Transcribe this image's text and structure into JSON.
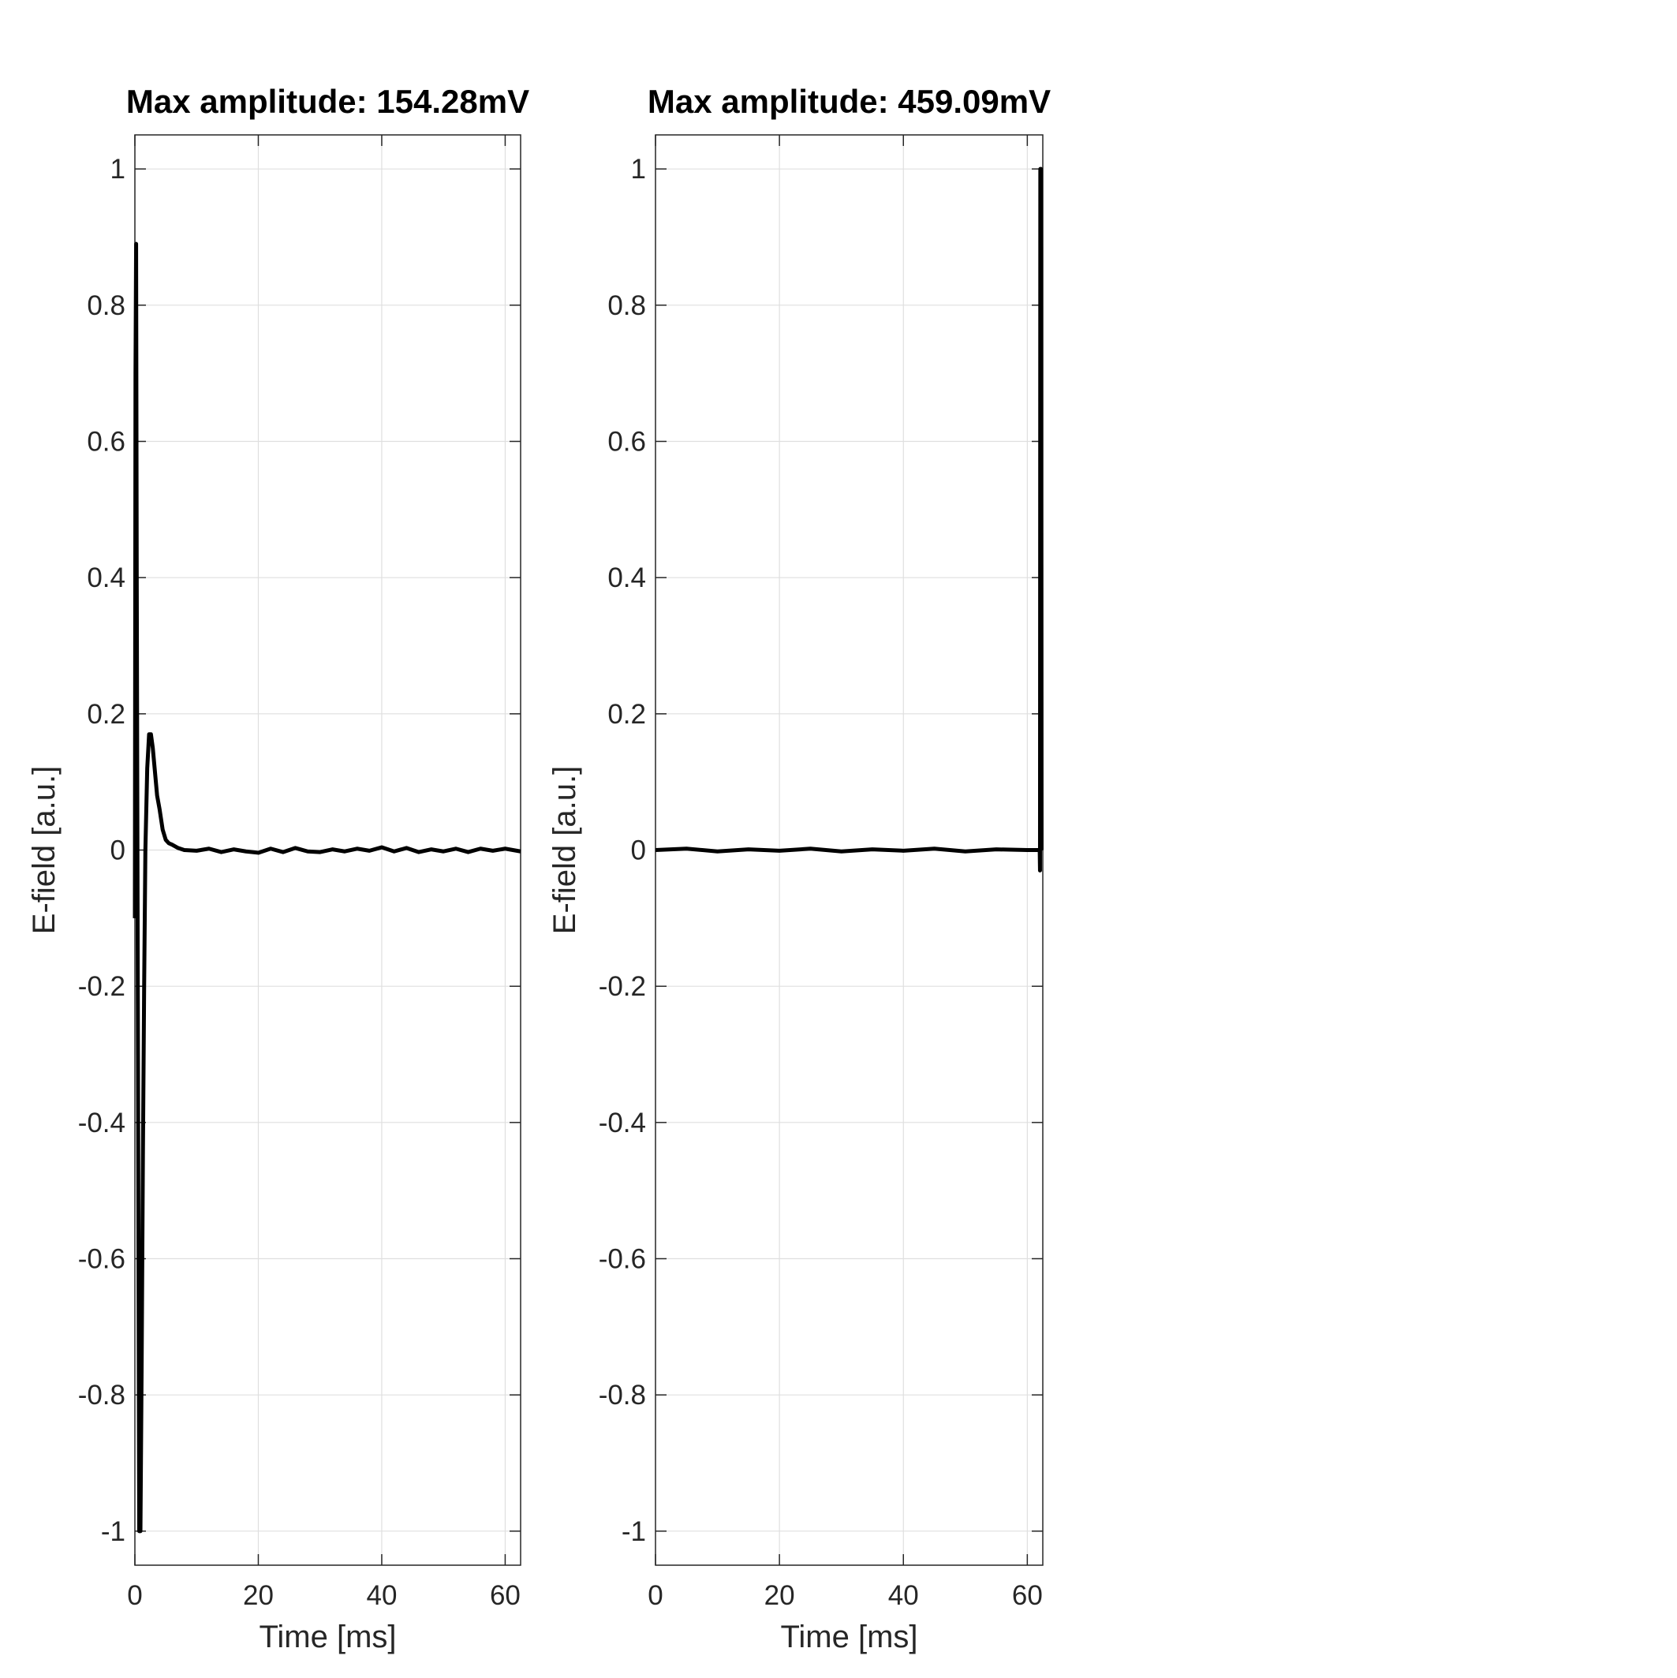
{
  "chart_data": [
    {
      "type": "line",
      "title": "Max amplitude: 154.28mV",
      "xlabel": "Time [ms]",
      "ylabel": "E-field [a.u.]",
      "xlim": [
        0,
        62.5
      ],
      "ylim": [
        -1.05,
        1.05
      ],
      "xticks": [
        0,
        20,
        40,
        60
      ],
      "xtick_labels": [
        "0",
        "20",
        "40",
        "60"
      ],
      "yticks": [
        -1,
        -0.8,
        -0.6,
        -0.4,
        -0.2,
        0,
        0.2,
        0.4,
        0.6,
        0.8,
        1
      ],
      "ytick_labels": [
        "-1",
        "-0.8",
        "-0.6",
        "-0.4",
        "-0.2",
        "0",
        "0.2",
        "0.4",
        "0.6",
        "0.8",
        "1"
      ],
      "grid": true,
      "line_color": "#000000",
      "series": [
        {
          "x": [
            0,
            0.05,
            0.1,
            0.2,
            0.3,
            0.5,
            0.7,
            0.9,
            1.1,
            1.3,
            1.5,
            1.7,
            2.0,
            2.3,
            2.6,
            2.9,
            3.2,
            3.6,
            4.0,
            4.5,
            5.0,
            5.5,
            6.0,
            7,
            8,
            10,
            12,
            14,
            16,
            18,
            20,
            22,
            24,
            26,
            28,
            30,
            32,
            34,
            36,
            38,
            40,
            42,
            44,
            46,
            48,
            50,
            52,
            54,
            56,
            58,
            60,
            62.5
          ],
          "y": [
            -0.1,
            0.3,
            0.7,
            0.89,
            0.4,
            -0.3,
            -1.0,
            -1.0,
            -0.75,
            -0.45,
            -0.2,
            0.0,
            0.12,
            0.17,
            0.17,
            0.15,
            0.12,
            0.08,
            0.06,
            0.03,
            0.015,
            0.01,
            0.008,
            0.003,
            0.0,
            -0.001,
            0.002,
            -0.003,
            0.001,
            -0.002,
            -0.004,
            0.002,
            -0.003,
            0.003,
            -0.002,
            -0.003,
            0.001,
            -0.002,
            0.002,
            -0.001,
            0.004,
            -0.002,
            0.003,
            -0.003,
            0.001,
            -0.002,
            0.002,
            -0.003,
            0.002,
            -0.001,
            0.002,
            -0.002
          ]
        }
      ]
    },
    {
      "type": "line",
      "title": "Max amplitude: 459.09mV",
      "xlabel": "Time [ms]",
      "ylabel": "E-field [a.u.]",
      "xlim": [
        0,
        62.5
      ],
      "ylim": [
        -1.05,
        1.05
      ],
      "xticks": [
        0,
        20,
        40,
        60
      ],
      "xtick_labels": [
        "0",
        "20",
        "40",
        "60"
      ],
      "yticks": [
        -1,
        -0.8,
        -0.6,
        -0.4,
        -0.2,
        0,
        0.2,
        0.4,
        0.6,
        0.8,
        1
      ],
      "ytick_labels": [
        "-1",
        "-0.8",
        "-0.6",
        "-0.4",
        "-0.2",
        "0",
        "0.2",
        "0.4",
        "0.6",
        "0.8",
        "1"
      ],
      "grid": true,
      "line_color": "#000000",
      "series": [
        {
          "x": [
            0,
            5,
            10,
            15,
            20,
            25,
            30,
            35,
            40,
            45,
            50,
            55,
            60,
            62.0,
            62.05,
            62.1,
            62.15,
            62.2,
            62.25,
            62.3
          ],
          "y": [
            0,
            0.002,
            -0.002,
            0.001,
            -0.001,
            0.002,
            -0.002,
            0.001,
            -0.001,
            0.002,
            -0.002,
            0.001,
            0,
            0,
            -0.03,
            1.0,
            0.5,
            1.0,
            0.47,
            0.0
          ]
        }
      ]
    }
  ]
}
